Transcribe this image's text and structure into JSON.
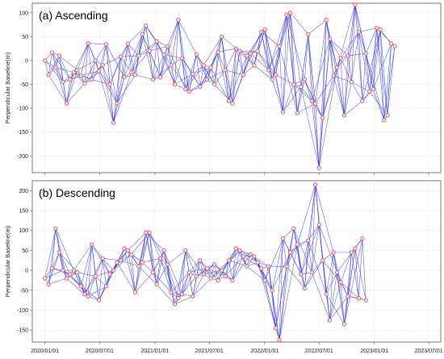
{
  "chart_data": [
    {
      "type": "scatter",
      "title": "(a) Ascending",
      "ylabel": "Perpendicular Baseline(m)",
      "ylim": [
        -235,
        120
      ],
      "yticks": [
        100,
        50,
        0,
        -50,
        -100,
        -150,
        -200
      ],
      "xlim": [
        "2019-11-20",
        "2023-08-10"
      ],
      "xticks": [
        "2020/01/01",
        "2020/07/01",
        "2021/01/01",
        "2021/07/01",
        "2022/01/01",
        "2022/07/01",
        "2023/01/01",
        "2023/07/01"
      ],
      "grid": true,
      "point_color": "#d45a6a",
      "edge_color": "#3a3ad0",
      "points": [
        {
          "x": "2020-01-01",
          "y": 0
        },
        {
          "x": "2020-01-13",
          "y": -30
        },
        {
          "x": "2020-01-25",
          "y": 17
        },
        {
          "x": "2020-02-06",
          "y": -15
        },
        {
          "x": "2020-02-18",
          "y": 10
        },
        {
          "x": "2020-03-01",
          "y": -45
        },
        {
          "x": "2020-03-13",
          "y": -90
        },
        {
          "x": "2020-03-25",
          "y": -40
        },
        {
          "x": "2020-04-06",
          "y": -25
        },
        {
          "x": "2020-04-18",
          "y": -20
        },
        {
          "x": "2020-04-30",
          "y": -32
        },
        {
          "x": "2020-05-12",
          "y": -48
        },
        {
          "x": "2020-05-24",
          "y": 36
        },
        {
          "x": "2020-06-05",
          "y": -40
        },
        {
          "x": "2020-06-17",
          "y": 0
        },
        {
          "x": "2020-06-29",
          "y": -22
        },
        {
          "x": "2020-07-11",
          "y": -10
        },
        {
          "x": "2020-07-23",
          "y": 34
        },
        {
          "x": "2020-08-04",
          "y": -50
        },
        {
          "x": "2020-08-16",
          "y": -130
        },
        {
          "x": "2020-08-28",
          "y": -90
        },
        {
          "x": "2020-09-09",
          "y": 8
        },
        {
          "x": "2020-09-21",
          "y": -35
        },
        {
          "x": "2020-10-03",
          "y": 35
        },
        {
          "x": "2020-10-15",
          "y": -25
        },
        {
          "x": "2020-10-27",
          "y": -30
        },
        {
          "x": "2020-11-08",
          "y": 10
        },
        {
          "x": "2020-11-20",
          "y": 55
        },
        {
          "x": "2020-12-02",
          "y": 73
        },
        {
          "x": "2020-12-14",
          "y": 20
        },
        {
          "x": "2020-12-26",
          "y": -40
        },
        {
          "x": "2021-01-07",
          "y": 40
        },
        {
          "x": "2021-01-19",
          "y": -35
        },
        {
          "x": "2021-01-31",
          "y": 12
        },
        {
          "x": "2021-02-12",
          "y": 30
        },
        {
          "x": "2021-02-24",
          "y": -10
        },
        {
          "x": "2021-03-08",
          "y": -50
        },
        {
          "x": "2021-03-20",
          "y": 85
        },
        {
          "x": "2021-04-01",
          "y": 5
        },
        {
          "x": "2021-04-13",
          "y": -60
        },
        {
          "x": "2021-04-25",
          "y": -65
        },
        {
          "x": "2021-05-07",
          "y": -28
        },
        {
          "x": "2021-05-19",
          "y": 13
        },
        {
          "x": "2021-05-31",
          "y": -55
        },
        {
          "x": "2021-06-12",
          "y": -10
        },
        {
          "x": "2021-06-24",
          "y": -40
        },
        {
          "x": "2021-07-06",
          "y": -15
        },
        {
          "x": "2021-07-18",
          "y": -50
        },
        {
          "x": "2021-07-30",
          "y": 18
        },
        {
          "x": "2021-08-11",
          "y": 50
        },
        {
          "x": "2021-08-23",
          "y": -20
        },
        {
          "x": "2021-09-04",
          "y": -85
        },
        {
          "x": "2021-09-16",
          "y": -90
        },
        {
          "x": "2021-09-28",
          "y": 25
        },
        {
          "x": "2021-10-10",
          "y": 20
        },
        {
          "x": "2021-10-22",
          "y": -30
        },
        {
          "x": "2021-11-03",
          "y": 10
        },
        {
          "x": "2021-11-15",
          "y": 15
        },
        {
          "x": "2021-11-27",
          "y": -10
        },
        {
          "x": "2021-12-09",
          "y": 20
        },
        {
          "x": "2021-12-21",
          "y": 60
        },
        {
          "x": "2022-01-02",
          "y": 65
        },
        {
          "x": "2022-01-14",
          "y": -20
        },
        {
          "x": "2022-01-26",
          "y": -40
        },
        {
          "x": "2022-02-07",
          "y": -30
        },
        {
          "x": "2022-02-19",
          "y": 30
        },
        {
          "x": "2022-03-03",
          "y": -108
        },
        {
          "x": "2022-03-15",
          "y": 96
        },
        {
          "x": "2022-03-27",
          "y": 100
        },
        {
          "x": "2022-04-08",
          "y": -50
        },
        {
          "x": "2022-04-20",
          "y": -110
        },
        {
          "x": "2022-05-02",
          "y": -55
        },
        {
          "x": "2022-05-14",
          "y": -40
        },
        {
          "x": "2022-05-26",
          "y": 55
        },
        {
          "x": "2022-06-07",
          "y": -85
        },
        {
          "x": "2022-06-19",
          "y": -90
        },
        {
          "x": "2022-07-01",
          "y": -225
        },
        {
          "x": "2022-07-13",
          "y": -120
        },
        {
          "x": "2022-07-25",
          "y": 85
        },
        {
          "x": "2022-08-06",
          "y": 45
        },
        {
          "x": "2022-08-18",
          "y": -32
        },
        {
          "x": "2022-08-30",
          "y": -15
        },
        {
          "x": "2022-09-11",
          "y": 5
        },
        {
          "x": "2022-09-23",
          "y": -115
        },
        {
          "x": "2022-10-05",
          "y": 10
        },
        {
          "x": "2022-10-17",
          "y": -45
        },
        {
          "x": "2022-10-29",
          "y": 117
        },
        {
          "x": "2022-11-10",
          "y": 60
        },
        {
          "x": "2022-11-22",
          "y": -85
        },
        {
          "x": "2022-12-04",
          "y": 15
        },
        {
          "x": "2022-12-16",
          "y": -65
        },
        {
          "x": "2022-12-28",
          "y": -60
        },
        {
          "x": "2023-01-09",
          "y": 68
        },
        {
          "x": "2023-01-21",
          "y": 65
        },
        {
          "x": "2023-02-02",
          "y": -125
        },
        {
          "x": "2023-02-14",
          "y": -115
        },
        {
          "x": "2023-02-26",
          "y": 35
        },
        {
          "x": "2023-03-10",
          "y": 30
        }
      ]
    },
    {
      "type": "scatter",
      "title": "(b) Descending",
      "ylabel": "Perpendicular Baseline(m)",
      "ylim": [
        -180,
        225
      ],
      "yticks": [
        200,
        150,
        100,
        50,
        0,
        -50,
        -100,
        -150
      ],
      "xlim": [
        "2019-11-20",
        "2023-08-10"
      ],
      "xticks": [
        "2020/01/01",
        "2020/07/01",
        "2021/01/01",
        "2021/07/01",
        "2022/01/01",
        "2022/07/01",
        "2023/01/01",
        "2023/07/01"
      ],
      "grid": true,
      "point_color": "#d45a6a",
      "edge_color": "#3a3ad0",
      "points": [
        {
          "x": "2020-01-01",
          "y": -20
        },
        {
          "x": "2020-01-13",
          "y": -35
        },
        {
          "x": "2020-01-25",
          "y": 5
        },
        {
          "x": "2020-02-06",
          "y": 105
        },
        {
          "x": "2020-02-18",
          "y": 45
        },
        {
          "x": "2020-03-01",
          "y": 0
        },
        {
          "x": "2020-03-13",
          "y": -20
        },
        {
          "x": "2020-03-25",
          "y": -10
        },
        {
          "x": "2020-04-06",
          "y": 0
        },
        {
          "x": "2020-04-18",
          "y": -5
        },
        {
          "x": "2020-04-30",
          "y": -40
        },
        {
          "x": "2020-05-12",
          "y": -60
        },
        {
          "x": "2020-05-24",
          "y": -65
        },
        {
          "x": "2020-06-05",
          "y": 65
        },
        {
          "x": "2020-06-17",
          "y": -15
        },
        {
          "x": "2020-06-29",
          "y": -75
        },
        {
          "x": "2020-07-11",
          "y": 30
        },
        {
          "x": "2020-07-23",
          "y": -40
        },
        {
          "x": "2020-08-04",
          "y": -10
        },
        {
          "x": "2020-08-16",
          "y": 0
        },
        {
          "x": "2020-08-28",
          "y": 20
        },
        {
          "x": "2020-09-09",
          "y": 25
        },
        {
          "x": "2020-09-21",
          "y": 55
        },
        {
          "x": "2020-10-03",
          "y": 50
        },
        {
          "x": "2020-10-15",
          "y": 40
        },
        {
          "x": "2020-10-27",
          "y": -55
        },
        {
          "x": "2020-11-08",
          "y": 10
        },
        {
          "x": "2020-11-20",
          "y": 20
        },
        {
          "x": "2020-12-02",
          "y": 95
        },
        {
          "x": "2020-12-14",
          "y": 95
        },
        {
          "x": "2020-12-26",
          "y": -5
        },
        {
          "x": "2021-01-07",
          "y": -35
        },
        {
          "x": "2021-01-19",
          "y": 30
        },
        {
          "x": "2021-01-31",
          "y": 50
        },
        {
          "x": "2021-02-12",
          "y": 15
        },
        {
          "x": "2021-02-24",
          "y": -55
        },
        {
          "x": "2021-03-08",
          "y": -85
        },
        {
          "x": "2021-03-20",
          "y": -70
        },
        {
          "x": "2021-04-01",
          "y": -60
        },
        {
          "x": "2021-04-13",
          "y": 50
        },
        {
          "x": "2021-04-25",
          "y": -5
        },
        {
          "x": "2021-05-07",
          "y": -65
        },
        {
          "x": "2021-05-19",
          "y": -15
        },
        {
          "x": "2021-05-31",
          "y": 25
        },
        {
          "x": "2021-06-12",
          "y": -10
        },
        {
          "x": "2021-06-24",
          "y": 5
        },
        {
          "x": "2021-07-06",
          "y": -20
        },
        {
          "x": "2021-07-18",
          "y": 15
        },
        {
          "x": "2021-07-30",
          "y": -25
        },
        {
          "x": "2021-08-11",
          "y": 0
        },
        {
          "x": "2021-08-23",
          "y": -15
        },
        {
          "x": "2021-09-04",
          "y": 25
        },
        {
          "x": "2021-09-16",
          "y": -25
        },
        {
          "x": "2021-09-28",
          "y": 55
        },
        {
          "x": "2021-10-10",
          "y": 50
        },
        {
          "x": "2021-10-22",
          "y": 35
        },
        {
          "x": "2021-11-03",
          "y": 10
        },
        {
          "x": "2021-11-15",
          "y": 40
        },
        {
          "x": "2021-11-27",
          "y": 35
        },
        {
          "x": "2021-12-09",
          "y": 20
        },
        {
          "x": "2021-12-21",
          "y": 5
        },
        {
          "x": "2022-01-02",
          "y": -25
        },
        {
          "x": "2022-01-14",
          "y": 10
        },
        {
          "x": "2022-01-26",
          "y": -50
        },
        {
          "x": "2022-02-07",
          "y": -145
        },
        {
          "x": "2022-02-19",
          "y": -175
        },
        {
          "x": "2022-03-03",
          "y": 80
        },
        {
          "x": "2022-03-15",
          "y": 10
        },
        {
          "x": "2022-03-27",
          "y": 45
        },
        {
          "x": "2022-04-08",
          "y": 105
        },
        {
          "x": "2022-04-20",
          "y": 65
        },
        {
          "x": "2022-05-02",
          "y": -10
        },
        {
          "x": "2022-05-14",
          "y": -45
        },
        {
          "x": "2022-05-26",
          "y": 75
        },
        {
          "x": "2022-06-07",
          "y": -5
        },
        {
          "x": "2022-06-19",
          "y": 215
        },
        {
          "x": "2022-07-01",
          "y": 115
        },
        {
          "x": "2022-07-13",
          "y": 25
        },
        {
          "x": "2022-07-25",
          "y": -60
        },
        {
          "x": "2022-08-06",
          "y": -125
        },
        {
          "x": "2022-08-18",
          "y": 45
        },
        {
          "x": "2022-08-30",
          "y": -5
        },
        {
          "x": "2022-09-11",
          "y": -30
        },
        {
          "x": "2022-09-23",
          "y": -135
        },
        {
          "x": "2022-10-05",
          "y": -65
        },
        {
          "x": "2022-10-17",
          "y": 45
        },
        {
          "x": "2022-10-29",
          "y": 55
        },
        {
          "x": "2022-11-10",
          "y": -70
        },
        {
          "x": "2022-11-22",
          "y": 80
        },
        {
          "x": "2022-12-04",
          "y": -75
        }
      ]
    }
  ]
}
